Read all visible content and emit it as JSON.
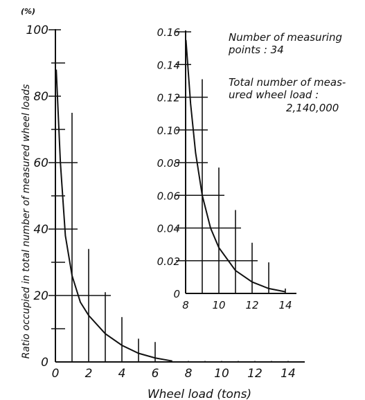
{
  "chart_data": [
    {
      "type": "bar",
      "unit_label": "(%)",
      "xlabel": "Wheel load (tons)",
      "ylabel": "Ratio occupied in total number of measured wheel loads",
      "xticks": [
        "0",
        "2",
        "4",
        "6",
        "8",
        "10",
        "12",
        "14"
      ],
      "yticks": [
        "0",
        "20",
        "40",
        "60",
        "80",
        "100"
      ],
      "xlim": [
        0,
        14.6
      ],
      "ylim": [
        0,
        100
      ],
      "x": [
        0,
        1,
        2,
        3,
        4,
        5,
        6,
        7,
        8,
        9,
        10,
        11,
        12,
        13,
        14
      ],
      "values": [
        89,
        75,
        34,
        21,
        13.5,
        7,
        6,
        0.5,
        0.3,
        0.3,
        0.3,
        0.3,
        0.3,
        0.3,
        0.3
      ],
      "curve": [
        [
          0.05,
          88
        ],
        [
          0.3,
          60
        ],
        [
          0.6,
          38
        ],
        [
          1,
          26
        ],
        [
          1.5,
          18
        ],
        [
          2,
          14
        ],
        [
          3,
          8.5
        ],
        [
          4,
          5
        ],
        [
          5,
          2.6
        ],
        [
          6,
          1.2
        ],
        [
          7,
          0.3
        ]
      ],
      "grid": "partial"
    },
    {
      "type": "bar",
      "inset": true,
      "xticks": [
        "8",
        "10",
        "12",
        "14"
      ],
      "yticks": [
        "0",
        "0.02",
        "0.04",
        "0.06",
        "0.08",
        "0.10",
        "0.12",
        "0.14",
        "0.16"
      ],
      "xlim": [
        8,
        14.6
      ],
      "ylim": [
        0,
        0.16
      ],
      "x": [
        8,
        9,
        10,
        11,
        12,
        13,
        14
      ],
      "values": [
        0.155,
        0.131,
        0.077,
        0.051,
        0.031,
        0.019,
        0.003
      ],
      "curve": [
        [
          8.02,
          0.155
        ],
        [
          8.3,
          0.116
        ],
        [
          8.6,
          0.086
        ],
        [
          9,
          0.06
        ],
        [
          9.5,
          0.04
        ],
        [
          10,
          0.028
        ],
        [
          11,
          0.014
        ],
        [
          12,
          0.007
        ],
        [
          13,
          0.003
        ],
        [
          14,
          0.001
        ]
      ]
    }
  ],
  "notes": {
    "measuring_points": [
      "Number of measuring",
      "points : 34"
    ],
    "total_loads": [
      "Total number of meas-",
      "ured wheel load :",
      "2,140,000"
    ]
  }
}
